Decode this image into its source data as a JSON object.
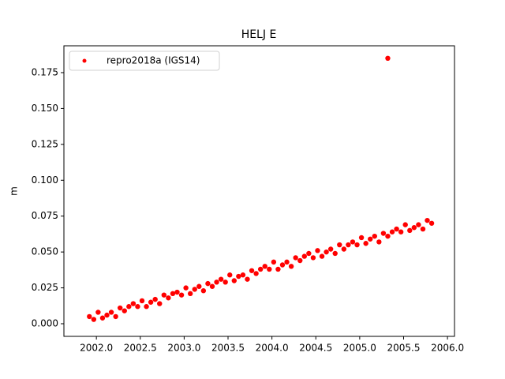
{
  "chart_data": {
    "type": "scatter",
    "title": "HELJ E",
    "ylabel": "m",
    "legend_loc": "upper left",
    "series": [
      {
        "name": "repro2018a (IGS14)",
        "color": "#ff0000",
        "x": [
          2001.92,
          2001.97,
          2002.02,
          2002.07,
          2002.12,
          2002.17,
          2002.22,
          2002.27,
          2002.32,
          2002.37,
          2002.42,
          2002.47,
          2002.52,
          2002.57,
          2002.62,
          2002.67,
          2002.72,
          2002.77,
          2002.82,
          2002.87,
          2002.92,
          2002.97,
          2003.02,
          2003.07,
          2003.12,
          2003.17,
          2003.22,
          2003.27,
          2003.32,
          2003.37,
          2003.42,
          2003.47,
          2003.52,
          2003.57,
          2003.62,
          2003.67,
          2003.72,
          2003.77,
          2003.82,
          2003.87,
          2003.92,
          2003.97,
          2004.02,
          2004.07,
          2004.12,
          2004.17,
          2004.22,
          2004.27,
          2004.32,
          2004.37,
          2004.42,
          2004.47,
          2004.52,
          2004.57,
          2004.62,
          2004.67,
          2004.72,
          2004.77,
          2004.82,
          2004.87,
          2004.92,
          2004.97,
          2005.02,
          2005.07,
          2005.12,
          2005.17,
          2005.22,
          2005.27,
          2005.32,
          2005.37,
          2005.42,
          2005.47,
          2005.52,
          2005.57,
          2005.62,
          2005.67,
          2005.72,
          2005.77,
          2005.82,
          2005.32
        ],
        "values": [
          0.005,
          0.003,
          0.008,
          0.004,
          0.006,
          0.008,
          0.005,
          0.011,
          0.009,
          0.012,
          0.014,
          0.012,
          0.016,
          0.012,
          0.015,
          0.017,
          0.014,
          0.02,
          0.018,
          0.021,
          0.022,
          0.02,
          0.025,
          0.021,
          0.024,
          0.026,
          0.023,
          0.028,
          0.026,
          0.029,
          0.031,
          0.029,
          0.034,
          0.03,
          0.033,
          0.034,
          0.031,
          0.037,
          0.035,
          0.038,
          0.04,
          0.038,
          0.043,
          0.038,
          0.041,
          0.043,
          0.04,
          0.046,
          0.044,
          0.047,
          0.049,
          0.046,
          0.051,
          0.047,
          0.05,
          0.052,
          0.049,
          0.055,
          0.052,
          0.055,
          0.057,
          0.055,
          0.06,
          0.056,
          0.059,
          0.061,
          0.057,
          0.063,
          0.061,
          0.064,
          0.066,
          0.064,
          0.069,
          0.065,
          0.067,
          0.069,
          0.066,
          0.072,
          0.07,
          0.185
        ]
      }
    ],
    "xlim": [
      2001.63,
      2006.08
    ],
    "xticks": [
      {
        "value": 2002,
        "label": "2002.0"
      },
      {
        "value": 2002.5,
        "label": "2002.5"
      },
      {
        "value": 2003,
        "label": "2003.0"
      },
      {
        "value": 2003.5,
        "label": "2003.5"
      },
      {
        "value": 2004,
        "label": "2004.0"
      },
      {
        "value": 2004.5,
        "label": "2004.5"
      },
      {
        "value": 2005,
        "label": "2005.0"
      },
      {
        "value": 2005.5,
        "label": "2005.5"
      },
      {
        "value": 2006,
        "label": "2006.0"
      }
    ],
    "ylim": [
      -0.0088,
      0.1937
    ],
    "yticks": [
      {
        "value": 0,
        "label": "0.000"
      },
      {
        "value": 0.025,
        "label": "0.025"
      },
      {
        "value": 0.05,
        "label": "0.050"
      },
      {
        "value": 0.075,
        "label": "0.075"
      },
      {
        "value": 0.1,
        "label": "0.100"
      },
      {
        "value": 0.125,
        "label": "0.125"
      },
      {
        "value": 0.15,
        "label": "0.150"
      },
      {
        "value": 0.175,
        "label": "0.175"
      }
    ]
  }
}
